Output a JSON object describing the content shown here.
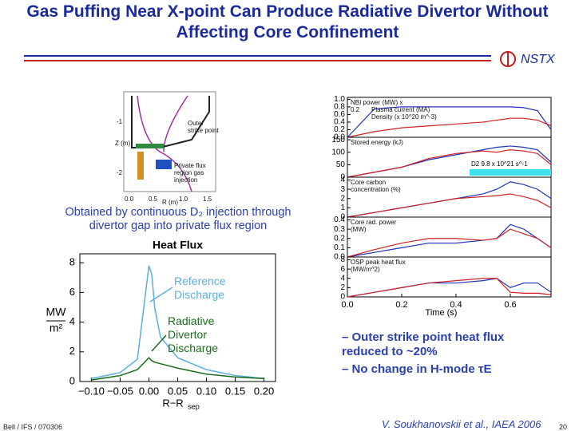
{
  "title": "Gas Puffing Near X-point Can Produce Radiative Divertor Without Affecting Core Confinement",
  "logo": "NSTX",
  "diagram": {
    "labels": [
      "Outer strike point",
      "Private flux region gas injection"
    ],
    "xticks": [
      "0.0",
      "0.5",
      "R (m)",
      "1.0",
      "1.5"
    ],
    "yticks": [
      "-1",
      "-2"
    ],
    "ylabel": "Z (m)"
  },
  "caption": "Obtained by continuous D₂ injection through divertor gap into private flux region",
  "chart_data": [
    {
      "type": "line",
      "title": "Heat Flux",
      "ylabel": [
        "MW",
        "m²"
      ],
      "xlabel": [
        "R−R",
        "sep"
      ],
      "x": [
        -0.1,
        -0.05,
        -0.02,
        0,
        0.005,
        0.01,
        0.02,
        0.05,
        0.1,
        0.15,
        0.2
      ],
      "series": [
        {
          "name": "Reference Discharge",
          "color": "#5aaee0",
          "values": [
            0.2,
            0.6,
            1.5,
            7.8,
            7.2,
            5,
            3,
            1.6,
            0.8,
            0.4,
            0.2
          ]
        },
        {
          "name": "Radiative Divertor Discharge",
          "color": "#1a6b1a",
          "values": [
            0.1,
            0.4,
            0.8,
            1.6,
            1.4,
            1.3,
            1.2,
            0.9,
            0.5,
            0.3,
            0.2
          ]
        }
      ],
      "xlim": [
        -0.12,
        0.22
      ],
      "ylim": [
        0,
        8.6
      ],
      "xticks": [
        {
          "value": -0.1,
          "label": "−0.10"
        },
        {
          "value": -0.05,
          "label": "−0.05"
        },
        {
          "value": 0,
          "label": "0.00"
        },
        0.05,
        {
          "value": 0.1,
          "label": "0.10"
        },
        0.15,
        {
          "value": 0.2,
          "label": "0.20"
        }
      ],
      "yticks": [
        0,
        2,
        4,
        6,
        8
      ]
    },
    {
      "type": "multi-panel line",
      "xlabel": "Time (s)",
      "x": [
        0,
        0.1,
        0.2,
        0.3,
        0.4,
        0.5,
        0.55,
        0.6,
        0.65,
        0.7,
        0.75
      ],
      "xlim": [
        0,
        0.75
      ],
      "xticks": [
        {
          "value": 0,
          "label": "0.0"
        },
        0.2,
        0.4,
        0.6
      ],
      "gas_puff": {
        "label": "D2 9.8 x 10^21 s^-1",
        "xrange": [
          0.45,
          0.75
        ]
      },
      "panels": [
        {
          "labels": [
            "NBI power (MW) x 0.2",
            "Plasma current (MA)",
            "Density (x 10^20 m^-3)"
          ],
          "ylim": [
            0,
            1.05
          ],
          "yticks": [
            {
              "value": 0,
              "label": "0.0"
            },
            0.2,
            0.4,
            0.6,
            0.8,
            {
              "value": 1,
              "label": "1.0"
            }
          ],
          "series": [
            {
              "color": "#2030c0",
              "values": [
                0,
                0.75,
                0.8,
                0.8,
                0.8,
                0.8,
                0.8,
                0.8,
                0.78,
                0.7,
                0.2
              ]
            },
            {
              "color": "#d02020",
              "values": [
                0,
                0.15,
                0.25,
                0.3,
                0.35,
                0.4,
                0.45,
                0.5,
                0.5,
                0.45,
                0.3
              ]
            }
          ]
        },
        {
          "labels": [
            "Stored energy (kJ)"
          ],
          "ylim": [
            0,
            160
          ],
          "yticks": [
            0,
            50,
            100,
            150
          ],
          "series": [
            {
              "color": "#2030c0",
              "values": [
                0,
                20,
                40,
                70,
                90,
                110,
                120,
                125,
                120,
                110,
                60
              ]
            },
            {
              "color": "#d02020",
              "values": [
                0,
                20,
                40,
                75,
                95,
                105,
                100,
                110,
                105,
                95,
                50
              ]
            }
          ]
        },
        {
          "labels": [
            "Core carbon concentration (%)"
          ],
          "ylim": [
            0,
            4.3
          ],
          "yticks": [
            0,
            1,
            2,
            3,
            4
          ],
          "series": [
            {
              "color": "#2030c0",
              "values": [
                0,
                0.5,
                1,
                1.5,
                2,
                2.5,
                3,
                3.8,
                3.5,
                3,
                2
              ]
            },
            {
              "color": "#d02020",
              "values": [
                0,
                0.5,
                1,
                1.5,
                2,
                2.2,
                2.3,
                2.5,
                2.2,
                1.8,
                1
              ]
            }
          ]
        },
        {
          "labels": [
            "Core rad. power (MW)"
          ],
          "ylim": [
            0,
            0.43
          ],
          "yticks": [
            {
              "value": 0,
              "label": "0.0"
            },
            0.1,
            0.2,
            0.3,
            0.4
          ],
          "series": [
            {
              "color": "#2030c0",
              "values": [
                0,
                0.05,
                0.1,
                0.15,
                0.15,
                0.18,
                0.2,
                0.35,
                0.3,
                0.2,
                0.1
              ]
            },
            {
              "color": "#d02020",
              "values": [
                0,
                0.08,
                0.15,
                0.2,
                0.2,
                0.18,
                0.2,
                0.3,
                0.25,
                0.2,
                0.1
              ]
            }
          ]
        },
        {
          "labels": [
            "OSP peak heat flux (MW/m^2)"
          ],
          "ylim": [
            0,
            8.6
          ],
          "yticks": [
            0,
            2,
            4,
            6,
            8
          ],
          "series": [
            {
              "color": "#2030c0",
              "values": [
                0,
                1,
                2,
                3,
                3,
                3.5,
                4,
                2,
                3,
                3,
                1
              ]
            },
            {
              "color": "#d02020",
              "values": [
                0,
                1,
                2,
                3,
                3.5,
                4,
                4,
                1,
                0.8,
                0.8,
                0.5
              ]
            }
          ]
        }
      ]
    }
  ],
  "bullets": [
    "– Outer strike point heat flux reduced to ~20%",
    "– No change in H-mode τE"
  ],
  "footer": {
    "left": "Bell / IFS / 070306",
    "center": "V. Soukhanovskii et al., IAEA 2006",
    "page": "20"
  }
}
